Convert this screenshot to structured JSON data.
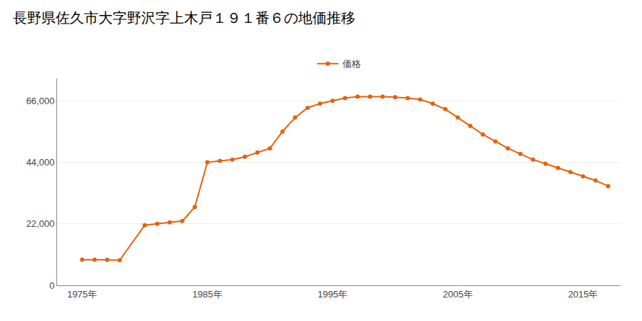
{
  "chart_data": {
    "type": "line",
    "title": "長野県佐久市大字野沢字上木戸１９１番６の地価推移",
    "x": [
      1975,
      1976,
      1977,
      1978,
      1980,
      1981,
      1982,
      1983,
      1984,
      1985,
      1986,
      1987,
      1988,
      1989,
      1990,
      1991,
      1992,
      1993,
      1994,
      1995,
      1996,
      1997,
      1998,
      1999,
      2000,
      2001,
      2002,
      2003,
      2004,
      2005,
      2006,
      2007,
      2008,
      2009,
      2010,
      2011,
      2012,
      2013,
      2014,
      2015,
      2016,
      2017
    ],
    "series": [
      {
        "name": "価格",
        "color": "#e8610a",
        "marker": "circle",
        "line_style": "solid",
        "values": [
          9200,
          9200,
          9100,
          9000,
          21500,
          22000,
          22500,
          23000,
          28000,
          44000,
          44500,
          45000,
          46000,
          47500,
          49000,
          55000,
          60000,
          63500,
          65000,
          66000,
          67000,
          67500,
          67500,
          67500,
          67300,
          67000,
          66500,
          65000,
          63000,
          60000,
          57000,
          54000,
          51500,
          49000,
          47000,
          45000,
          43500,
          42000,
          40500,
          39000,
          37500,
          35500
        ]
      }
    ],
    "xlim": [
      1973,
      2018
    ],
    "xticks": [
      {
        "value": 1975,
        "label": "1975年"
      },
      {
        "value": 1985,
        "label": "1985年"
      },
      {
        "value": 1995,
        "label": "1995年"
      },
      {
        "value": 2005,
        "label": "2005年"
      },
      {
        "value": 2015,
        "label": "2015年"
      }
    ],
    "ylim": [
      0,
      74000
    ],
    "yticks": [
      0,
      {
        "value": 22000,
        "label": "22,000"
      },
      {
        "value": 44000,
        "label": "44,000"
      },
      {
        "value": 66000,
        "label": "66,000"
      }
    ],
    "grid": true,
    "legend": "top"
  }
}
